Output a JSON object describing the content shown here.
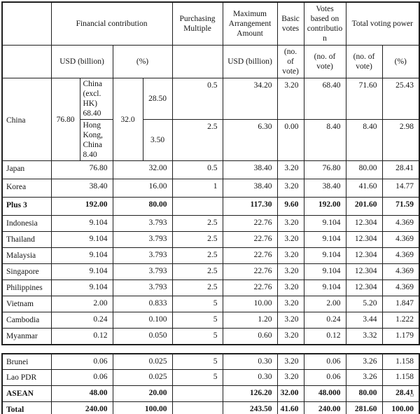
{
  "colors": {
    "border": "#1f1f1f",
    "text": "#141414",
    "background": "#ffffff"
  },
  "table": {
    "header": {
      "financial_contribution": "Financial contribution",
      "usd_billion": "USD (billion)",
      "percent": "(%)",
      "purchasing_multiple": "Purchasing Multiple",
      "maximum_arrangement_amount": "Maximum Arrangement Amount",
      "maa_unit": "USD (billion)",
      "basic_votes": "Basic votes",
      "basic_votes_unit": "(no. of vote)",
      "votes_based_on_contribution": "Votes based on contribution",
      "votes_unit": "(no. of vote)",
      "total_voting_power": "Total voting power",
      "tvp_votes_unit": "(no. of vote)",
      "tvp_percent_unit": "(%)"
    },
    "china": {
      "label": "China",
      "usd_total": "76.80",
      "pct_total": "32.0",
      "sub_rows": [
        {
          "name": "China (excl. HK) 68.40",
          "pct": "28.50",
          "multiple": "0.5",
          "maa": "34.20",
          "basic_votes": "3.20",
          "contribution_votes": "68.40",
          "total_votes": "71.60",
          "total_pct": "25.43"
        },
        {
          "name": "Hong Kong, China 8.40",
          "pct": "3.50",
          "multiple": "2.5",
          "maa": "6.30",
          "basic_votes": "0.00",
          "contribution_votes": "8.40",
          "total_votes": "8.40",
          "total_pct": "2.98"
        }
      ]
    },
    "rows_main": [
      {
        "label": "Japan",
        "usd": "76.80",
        "pct": "32.00",
        "multiple": "0.5",
        "maa": "38.40",
        "basic_votes": "3.20",
        "contribution_votes": "76.80",
        "total_votes": "80.00",
        "total_pct": "28.41",
        "bold": false
      },
      {
        "label": "Korea",
        "usd": "38.40",
        "pct": "16.00",
        "multiple": "1",
        "maa": "38.40",
        "basic_votes": "3.20",
        "contribution_votes": "38.40",
        "total_votes": "41.60",
        "total_pct": "14.77",
        "bold": false
      },
      {
        "label": "Plus 3",
        "usd": "192.00",
        "pct": "80.00",
        "multiple": "",
        "maa": "117.30",
        "basic_votes": "9.60",
        "contribution_votes": "192.00",
        "total_votes": "201.60",
        "total_pct": "71.59",
        "bold": true
      },
      {
        "label": "Indonesia",
        "usd": "9.104",
        "pct": "3.793",
        "multiple": "2.5",
        "maa": "22.76",
        "basic_votes": "3.20",
        "contribution_votes": "9.104",
        "total_votes": "12.304",
        "total_pct": "4.369",
        "bold": false
      },
      {
        "label": "Thailand",
        "usd": "9.104",
        "pct": "3.793",
        "multiple": "2.5",
        "maa": "22.76",
        "basic_votes": "3.20",
        "contribution_votes": "9.104",
        "total_votes": "12.304",
        "total_pct": "4.369",
        "bold": false
      },
      {
        "label": "Malaysia",
        "usd": "9.104",
        "pct": "3.793",
        "multiple": "2.5",
        "maa": "22.76",
        "basic_votes": "3.20",
        "contribution_votes": "9.104",
        "total_votes": "12.304",
        "total_pct": "4.369",
        "bold": false
      },
      {
        "label": "Singapore",
        "usd": "9.104",
        "pct": "3.793",
        "multiple": "2.5",
        "maa": "22.76",
        "basic_votes": "3.20",
        "contribution_votes": "9.104",
        "total_votes": "12.304",
        "total_pct": "4.369",
        "bold": false
      },
      {
        "label": "Philippines",
        "usd": "9.104",
        "pct": "3.793",
        "multiple": "2.5",
        "maa": "22.76",
        "basic_votes": "3.20",
        "contribution_votes": "9.104",
        "total_votes": "12.304",
        "total_pct": "4.369",
        "bold": false
      },
      {
        "label": "Vietnam",
        "usd": "2.00",
        "pct": "0.833",
        "multiple": "5",
        "maa": "10.00",
        "basic_votes": "3.20",
        "contribution_votes": "2.00",
        "total_votes": "5.20",
        "total_pct": "1.847",
        "bold": false
      },
      {
        "label": "Cambodia",
        "usd": "0.24",
        "pct": "0.100",
        "multiple": "5",
        "maa": "1.20",
        "basic_votes": "3.20",
        "contribution_votes": "0.24",
        "total_votes": "3.44",
        "total_pct": "1.222",
        "bold": false
      },
      {
        "label": "Myanmar",
        "usd": "0.12",
        "pct": "0.050",
        "multiple": "5",
        "maa": "0.60",
        "basic_votes": "3.20",
        "contribution_votes": "0.12",
        "total_votes": "3.32",
        "total_pct": "1.179",
        "bold": false
      }
    ],
    "rows_bottom": [
      {
        "label": "Brunei",
        "usd": "0.06",
        "pct": "0.025",
        "multiple": "5",
        "maa": "0.30",
        "basic_votes": "3.20",
        "contribution_votes": "0.06",
        "total_votes": "3.26",
        "total_pct": "1.158",
        "bold": false
      },
      {
        "label": "Lao PDR",
        "usd": "0.06",
        "pct": "0.025",
        "multiple": "5",
        "maa": "0.30",
        "basic_votes": "3.20",
        "contribution_votes": "0.06",
        "total_votes": "3.26",
        "total_pct": "1.158",
        "bold": false
      },
      {
        "label": "ASEAN",
        "usd": "48.00",
        "pct": "20.00",
        "multiple": "",
        "maa": "126.20",
        "basic_votes": "32.00",
        "contribution_votes": "48.000",
        "total_votes": "80.00",
        "total_pct": "28.41",
        "bold": true
      },
      {
        "label": "Total",
        "usd": "240.00",
        "pct": "100.00",
        "multiple": "",
        "maa": "243.50",
        "basic_votes": "41.60",
        "contribution_votes": "240.00",
        "total_votes": "281.60",
        "total_pct": "100.00",
        "bold": true
      }
    ]
  }
}
